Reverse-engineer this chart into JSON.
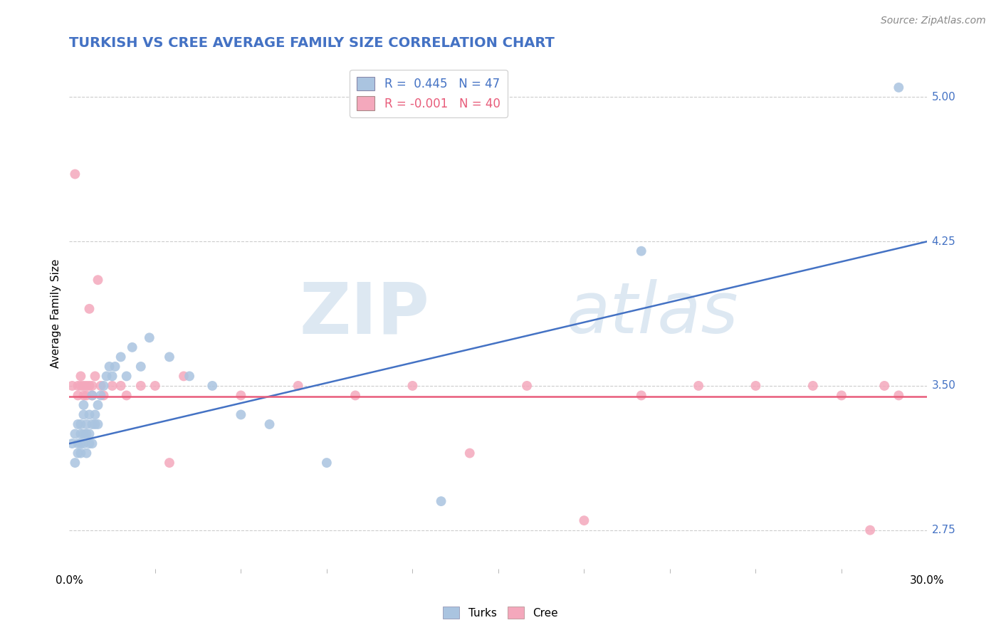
{
  "title": "TURKISH VS CREE AVERAGE FAMILY SIZE CORRELATION CHART",
  "source": "Source: ZipAtlas.com",
  "ylabel": "Average Family Size",
  "right_yticks": [
    2.75,
    3.5,
    4.25,
    5.0
  ],
  "watermark_text": "ZIP",
  "watermark_text2": "atlas",
  "legend_turks": "Turks",
  "legend_cree": "Cree",
  "R_turks": 0.445,
  "N_turks": 47,
  "R_cree": -0.001,
  "N_cree": 40,
  "turks_color": "#aac4e0",
  "cree_color": "#f4a8bc",
  "turks_line_color": "#4472c4",
  "cree_line_color": "#e85c7a",
  "title_color": "#4472c4",
  "title_fontsize": 14,
  "turks_x": [
    0.001,
    0.002,
    0.002,
    0.003,
    0.003,
    0.003,
    0.004,
    0.004,
    0.004,
    0.004,
    0.005,
    0.005,
    0.005,
    0.005,
    0.006,
    0.006,
    0.006,
    0.007,
    0.007,
    0.007,
    0.008,
    0.008,
    0.008,
    0.009,
    0.009,
    0.01,
    0.01,
    0.011,
    0.012,
    0.013,
    0.014,
    0.015,
    0.016,
    0.018,
    0.02,
    0.022,
    0.025,
    0.028,
    0.035,
    0.042,
    0.05,
    0.06,
    0.07,
    0.09,
    0.13,
    0.2,
    0.29
  ],
  "turks_y": [
    3.2,
    3.25,
    3.1,
    3.15,
    3.3,
    3.2,
    3.25,
    3.2,
    3.15,
    3.3,
    3.25,
    3.2,
    3.35,
    3.4,
    3.25,
    3.15,
    3.3,
    3.2,
    3.25,
    3.35,
    3.3,
    3.2,
    3.45,
    3.35,
    3.3,
    3.4,
    3.3,
    3.45,
    3.5,
    3.55,
    3.6,
    3.55,
    3.6,
    3.65,
    3.55,
    3.7,
    3.6,
    3.75,
    3.65,
    3.55,
    3.5,
    3.35,
    3.3,
    3.1,
    2.9,
    4.2,
    5.05
  ],
  "cree_x": [
    0.001,
    0.002,
    0.003,
    0.003,
    0.004,
    0.004,
    0.005,
    0.005,
    0.006,
    0.006,
    0.007,
    0.007,
    0.008,
    0.008,
    0.009,
    0.01,
    0.011,
    0.012,
    0.015,
    0.018,
    0.02,
    0.025,
    0.03,
    0.035,
    0.04,
    0.06,
    0.08,
    0.1,
    0.12,
    0.14,
    0.16,
    0.18,
    0.2,
    0.22,
    0.24,
    0.26,
    0.27,
    0.28,
    0.285,
    0.29
  ],
  "cree_y": [
    3.5,
    4.6,
    3.5,
    3.45,
    3.55,
    3.5,
    3.45,
    3.5,
    3.5,
    3.45,
    3.9,
    3.5,
    3.5,
    3.45,
    3.55,
    4.05,
    3.5,
    3.45,
    3.5,
    3.5,
    3.45,
    3.5,
    3.5,
    3.1,
    3.55,
    3.45,
    3.5,
    3.45,
    3.5,
    3.15,
    3.5,
    2.8,
    3.45,
    3.5,
    3.5,
    3.5,
    3.45,
    2.75,
    3.5,
    3.45
  ],
  "xlim": [
    0.0,
    0.3
  ],
  "ylim": [
    2.55,
    5.2
  ],
  "grid_color": "#cccccc",
  "grid_yticks": [
    2.75,
    3.5,
    4.25,
    5.0
  ]
}
